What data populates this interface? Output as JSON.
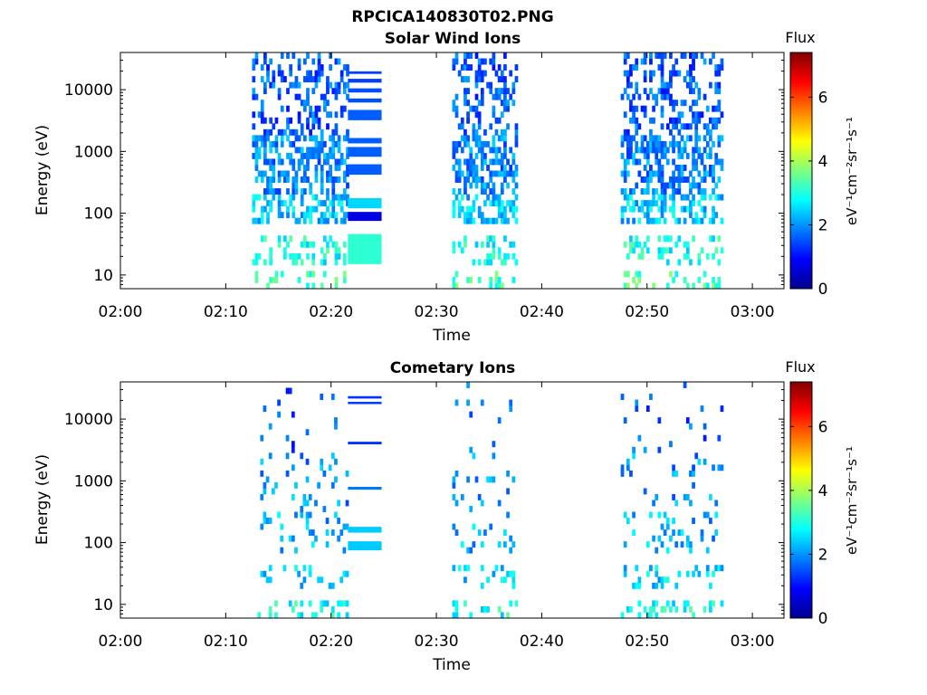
{
  "title": "RPCICA140830T02.PNG",
  "chart_data": [
    {
      "type": "heatmap",
      "title": "Solar Wind Ions",
      "xlabel": "Time",
      "ylabel": "Energy (eV)",
      "x_ticks": [
        "02:00",
        "02:10",
        "02:20",
        "02:30",
        "02:40",
        "02:50",
        "03:00"
      ],
      "x_range_minutes": [
        0,
        63
      ],
      "y_ticks": [
        "10",
        "100",
        "1000",
        "10000"
      ],
      "y_scale": "log",
      "y_range": [
        6,
        40000
      ],
      "colorbar": {
        "label": "Flux",
        "units": "eV⁻¹cm⁻²sr⁻¹s⁻¹",
        "ticks": [
          "0",
          "2",
          "4",
          "6"
        ],
        "range": [
          0,
          7.4
        ],
        "colormap": "jet"
      },
      "activity_intervals_minutes": [
        [
          12.5,
          21.5
        ],
        [
          31.5,
          37.5
        ],
        [
          47.5,
          57
        ]
      ],
      "bands": [
        {
          "t0": 21.6,
          "t1": 24.8,
          "e0": 75,
          "e1": 105,
          "flux": 0.7
        },
        {
          "t0": 21.6,
          "t1": 24.8,
          "e0": 120,
          "e1": 175,
          "flux": 2.5
        },
        {
          "t0": 21.6,
          "t1": 24.8,
          "e0": 15,
          "e1": 46,
          "flux": 3.1
        },
        {
          "t0": 21.6,
          "t1": 24.8,
          "e0": 420,
          "e1": 620,
          "flux": 1.6
        },
        {
          "t0": 21.6,
          "t1": 24.8,
          "e0": 820,
          "e1": 1180,
          "flux": 1.6
        },
        {
          "t0": 21.6,
          "t1": 24.8,
          "e0": 1350,
          "e1": 1650,
          "flux": 1.6
        },
        {
          "t0": 21.6,
          "t1": 24.8,
          "e0": 3200,
          "e1": 4700,
          "flux": 1.6
        },
        {
          "t0": 21.6,
          "t1": 24.8,
          "e0": 6200,
          "e1": 7200,
          "flux": 1.5
        },
        {
          "t0": 21.6,
          "t1": 24.8,
          "e0": 9000,
          "e1": 10500,
          "flux": 1.5
        },
        {
          "t0": 21.6,
          "t1": 24.8,
          "e0": 13000,
          "e1": 15000,
          "flux": 1.4
        },
        {
          "t0": 21.6,
          "t1": 24.8,
          "e0": 18000,
          "e1": 19800,
          "flux": 1.4
        }
      ]
    },
    {
      "type": "heatmap",
      "title": "Cometary Ions",
      "xlabel": "Time",
      "ylabel": "Energy (eV)",
      "x_ticks": [
        "02:00",
        "02:10",
        "02:20",
        "02:30",
        "02:40",
        "02:50",
        "03:00"
      ],
      "x_range_minutes": [
        0,
        63
      ],
      "y_ticks": [
        "10",
        "100",
        "1000",
        "10000"
      ],
      "y_scale": "log",
      "y_range": [
        6,
        40000
      ],
      "colorbar": {
        "label": "Flux",
        "units": "eV⁻¹cm⁻²sr⁻¹s⁻¹",
        "ticks": [
          "0",
          "2",
          "4",
          "6"
        ],
        "range": [
          0,
          7.4
        ],
        "colormap": "jet"
      },
      "activity_intervals_minutes": [
        [
          13,
          21.5
        ],
        [
          31.5,
          37.5
        ],
        [
          47.5,
          57
        ]
      ],
      "bands": [
        {
          "t0": 21.6,
          "t1": 24.8,
          "e0": 75,
          "e1": 105,
          "flux": 2.4
        },
        {
          "t0": 21.6,
          "t1": 24.8,
          "e0": 145,
          "e1": 180,
          "flux": 2.4
        },
        {
          "t0": 21.6,
          "t1": 24.8,
          "e0": 720,
          "e1": 800,
          "flux": 1.8
        },
        {
          "t0": 21.6,
          "t1": 24.8,
          "e0": 3900,
          "e1": 4300,
          "flux": 1.3
        },
        {
          "t0": 21.6,
          "t1": 24.8,
          "e0": 17500,
          "e1": 19000,
          "flux": 1.3
        },
        {
          "t0": 21.6,
          "t1": 24.8,
          "e0": 21500,
          "e1": 23500,
          "flux": 1.3
        }
      ]
    }
  ]
}
